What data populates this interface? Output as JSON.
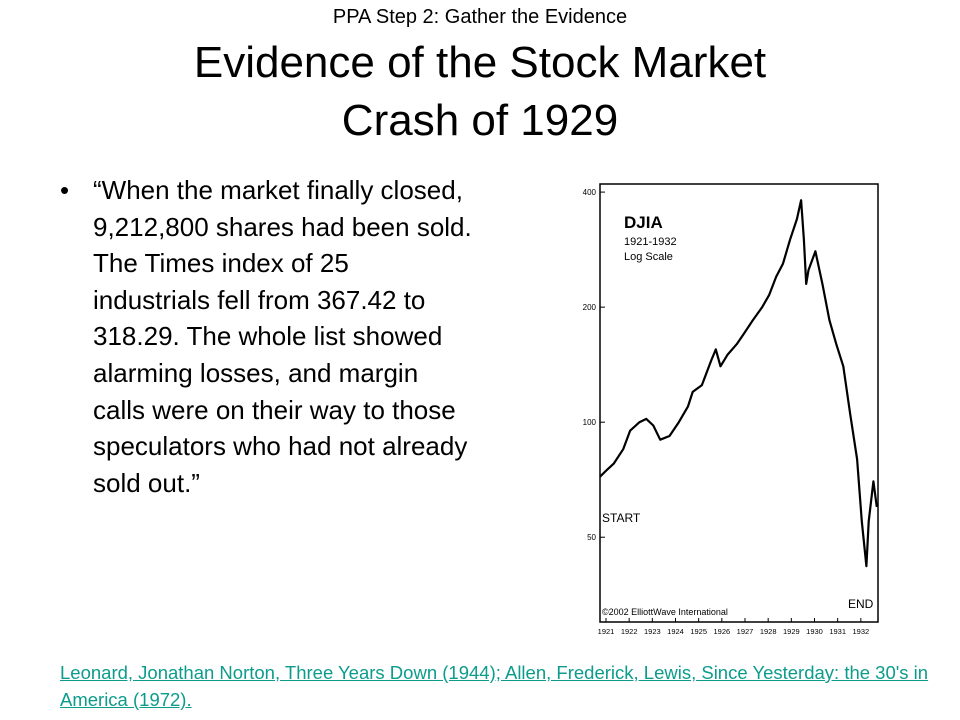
{
  "slide": {
    "header": "PPA Step 2: Gather the Evidence",
    "title_line1": "Evidence of the Stock Market",
    "title_line2": "Crash of 1929",
    "bullet_glyph": "•",
    "quote": "“When the market finally closed, 9,212,800 shares had been sold. The Times index of 25 industrials fell from 367.42 to 318.29. The whole list showed alarming losses, and margin calls were on their way to those speculators who had not already sold out.”",
    "citation": "Leonard, Jonathan Norton, Three Years Down (1944); Allen, Frederick, Lewis, Since Yesterday: the 30's in America (1972)."
  },
  "chart_data": {
    "type": "line",
    "title": "DJIA",
    "subtitle_line1": "1921-1932",
    "subtitle_line2": "Log Scale",
    "yscale": "log",
    "yticks": [
      50,
      100,
      200,
      400
    ],
    "ytick_labels": [
      "50",
      "100",
      "200",
      "400"
    ],
    "xtick_labels": [
      "1921",
      "1922",
      "1923",
      "1924",
      "1925",
      "1926",
      "1927",
      "1928",
      "1929",
      "1930",
      "1931",
      "1932"
    ],
    "annotations": {
      "start": "START",
      "end": "END",
      "copyright": "©2002 ElliottWave International"
    },
    "series": [
      {
        "x": [
          1921.0,
          1921.3,
          1921.6,
          1922.0,
          1922.3,
          1922.7,
          1923.0,
          1923.3,
          1923.6,
          1924.0,
          1924.4,
          1924.8,
          1925.0,
          1925.4,
          1925.8,
          1926.0,
          1926.2,
          1926.5,
          1926.9,
          1927.2,
          1927.6,
          1928.0,
          1928.3,
          1928.6,
          1928.9,
          1929.2,
          1929.5,
          1929.68,
          1929.8,
          1929.9,
          1930.0,
          1930.3,
          1930.6,
          1930.9,
          1931.2,
          1931.5,
          1931.8,
          1932.1,
          1932.3,
          1932.5,
          1932.6,
          1932.8,
          1932.95
        ],
        "y": [
          72,
          75,
          78,
          85,
          95,
          100,
          102,
          98,
          90,
          92,
          100,
          110,
          120,
          125,
          145,
          155,
          140,
          150,
          160,
          170,
          185,
          200,
          215,
          240,
          260,
          300,
          340,
          381,
          300,
          230,
          250,
          280,
          230,
          185,
          160,
          140,
          105,
          80,
          55,
          42,
          55,
          70,
          60
        ]
      }
    ]
  }
}
